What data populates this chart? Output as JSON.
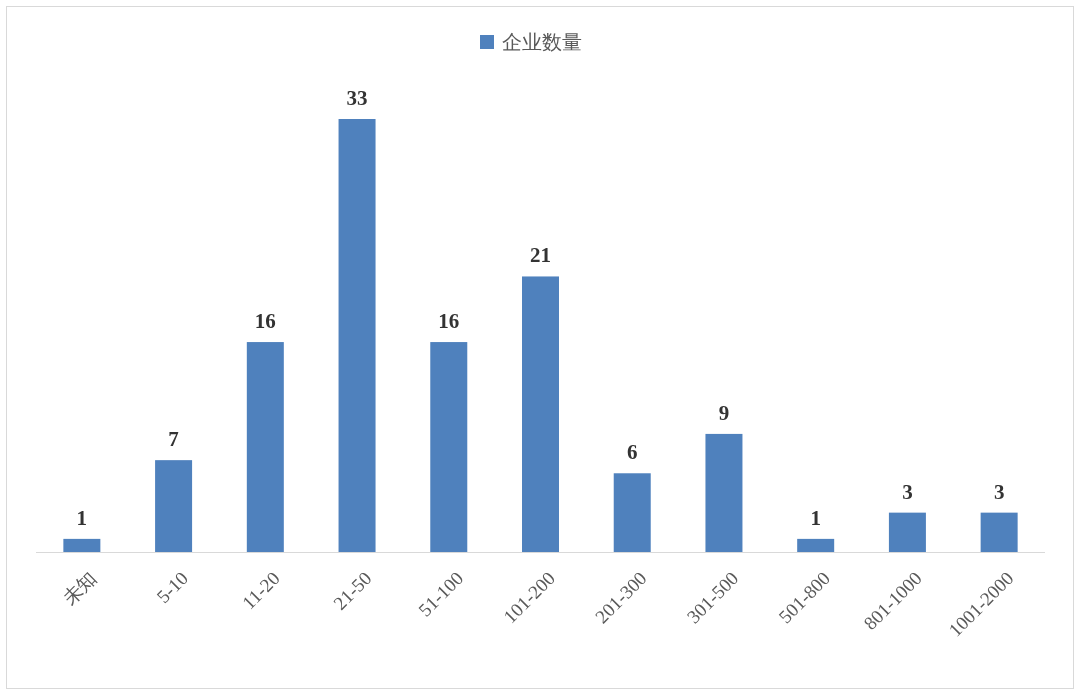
{
  "chart_data": {
    "type": "bar",
    "categories": [
      "未知",
      "5-10",
      "11-20",
      "21-50",
      "51-100",
      "101-200",
      "201-300",
      "301-500",
      "501-800",
      "801-1000",
      "1001-2000"
    ],
    "series": [
      {
        "name": "企业数量",
        "color": "#4f81bd",
        "values": [
          1,
          7,
          16,
          33,
          16,
          21,
          6,
          9,
          1,
          3,
          3
        ]
      }
    ],
    "data_labels": true,
    "legend": "top"
  }
}
